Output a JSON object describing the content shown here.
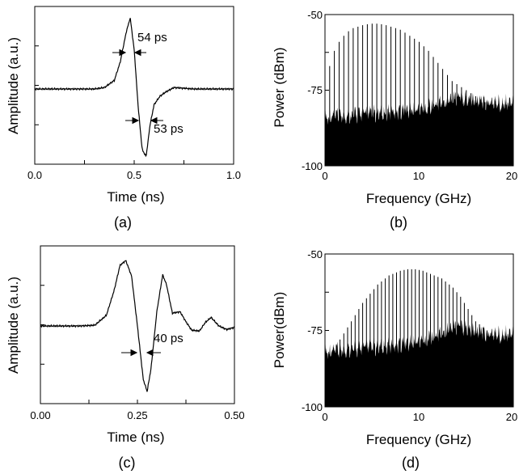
{
  "colors": {
    "ink": "#000000",
    "background": "#ffffff"
  },
  "chart_data": [
    {
      "panel": "(a)",
      "type": "line",
      "xlabel": "Time (ns)",
      "ylabel": "Amplitude (a.u.)",
      "xlim": [
        0.0,
        1.0
      ],
      "x_ticks": [
        "0.0",
        "0.5",
        "1.0"
      ],
      "y_tick_labels": "none",
      "grid": false,
      "series": [
        {
          "x": [
            0.0,
            0.1,
            0.2,
            0.3,
            0.35,
            0.4,
            0.43,
            0.46,
            0.48,
            0.5,
            0.52,
            0.54,
            0.56,
            0.58,
            0.6,
            0.63,
            0.66,
            0.7,
            0.75,
            0.8,
            0.9,
            1.0
          ],
          "y": [
            0.0,
            0.0,
            0.0,
            0.0,
            0.02,
            0.12,
            0.38,
            0.8,
            1.0,
            0.55,
            -0.25,
            -0.85,
            -0.95,
            -0.5,
            -0.22,
            -0.1,
            -0.04,
            0.02,
            0.01,
            0.0,
            0.0,
            0.0
          ]
        }
      ],
      "annotations": [
        "54 ps",
        "53 ps"
      ]
    },
    {
      "panel": "(b)",
      "type": "bar",
      "xlabel": "Frequency (GHz)",
      "ylabel": "Power (dBm)",
      "xlim": [
        0,
        20
      ],
      "ylim": [
        -100,
        -50
      ],
      "x_ticks": [
        "0",
        "10",
        "20"
      ],
      "y_ticks": [
        "-50",
        "-75",
        "-100"
      ],
      "grid": false,
      "tone_spacing_ghz": 0.5,
      "tones_dbm": [
        -67,
        -62,
        -59,
        -57,
        -55.5,
        -54.5,
        -54,
        -53.5,
        -53.2,
        -53,
        -53,
        -53.2,
        -53.5,
        -54,
        -54.5,
        -55,
        -56,
        -57,
        -58,
        -59,
        -60.5,
        -62,
        -64,
        -66,
        -68,
        -70,
        -72,
        -73,
        -74,
        -75,
        -76,
        -77,
        -78,
        -79,
        -80,
        -81,
        -82,
        -83,
        -84
      ],
      "noise_floor_dbm": {
        "start": -84,
        "end": -79,
        "peak_near_14ghz": -76
      }
    },
    {
      "panel": "(c)",
      "type": "line",
      "xlabel": "Time (ns)",
      "ylabel": "Amplitude (a.u.)",
      "xlim": [
        0.0,
        0.5
      ],
      "x_ticks": [
        "0.00",
        "0.25",
        "0.50"
      ],
      "y_tick_labels": "none",
      "grid": false,
      "series": [
        {
          "x": [
            0.0,
            0.1,
            0.14,
            0.17,
            0.19,
            0.205,
            0.22,
            0.235,
            0.25,
            0.265,
            0.275,
            0.285,
            0.3,
            0.315,
            0.325,
            0.34,
            0.36,
            0.375,
            0.39,
            0.41,
            0.425,
            0.44,
            0.46,
            0.48,
            0.5
          ],
          "y": [
            0.0,
            0.0,
            0.01,
            0.15,
            0.5,
            0.85,
            0.92,
            0.7,
            0.0,
            -0.75,
            -0.92,
            -0.6,
            0.2,
            0.72,
            0.58,
            0.18,
            0.2,
            0.06,
            -0.06,
            -0.07,
            0.05,
            0.12,
            0.0,
            -0.05,
            -0.02
          ]
        }
      ],
      "annotations": [
        "40 ps"
      ]
    },
    {
      "panel": "(d)",
      "type": "bar",
      "xlabel": "Frequency (GHz)",
      "ylabel": "Power(dBm)",
      "xlim": [
        0,
        20
      ],
      "ylim": [
        -100,
        -50
      ],
      "x_ticks": [
        "0",
        "10",
        "20"
      ],
      "y_ticks": [
        "-50",
        "-75",
        "-100"
      ],
      "grid": false,
      "tone_spacing_ghz": 0.4,
      "tones_dbm": [
        -84,
        -82,
        -80,
        -78,
        -76,
        -74,
        -72,
        -70,
        -68,
        -66,
        -64.5,
        -63,
        -61.5,
        -60,
        -59,
        -58,
        -57,
        -56.5,
        -56,
        -55.5,
        -55.2,
        -55,
        -55,
        -55,
        -55.2,
        -55.5,
        -56,
        -56.5,
        -57,
        -57.5,
        -58,
        -59,
        -60,
        -61,
        -62.5,
        -64,
        -66,
        -68,
        -70,
        -72,
        -73,
        -74,
        -75,
        -76,
        -77,
        -78,
        -79,
        -80,
        -81,
        -82
      ],
      "noise_floor_dbm": {
        "start": -82,
        "end": -76,
        "peak_near_14ghz": -72
      }
    }
  ]
}
